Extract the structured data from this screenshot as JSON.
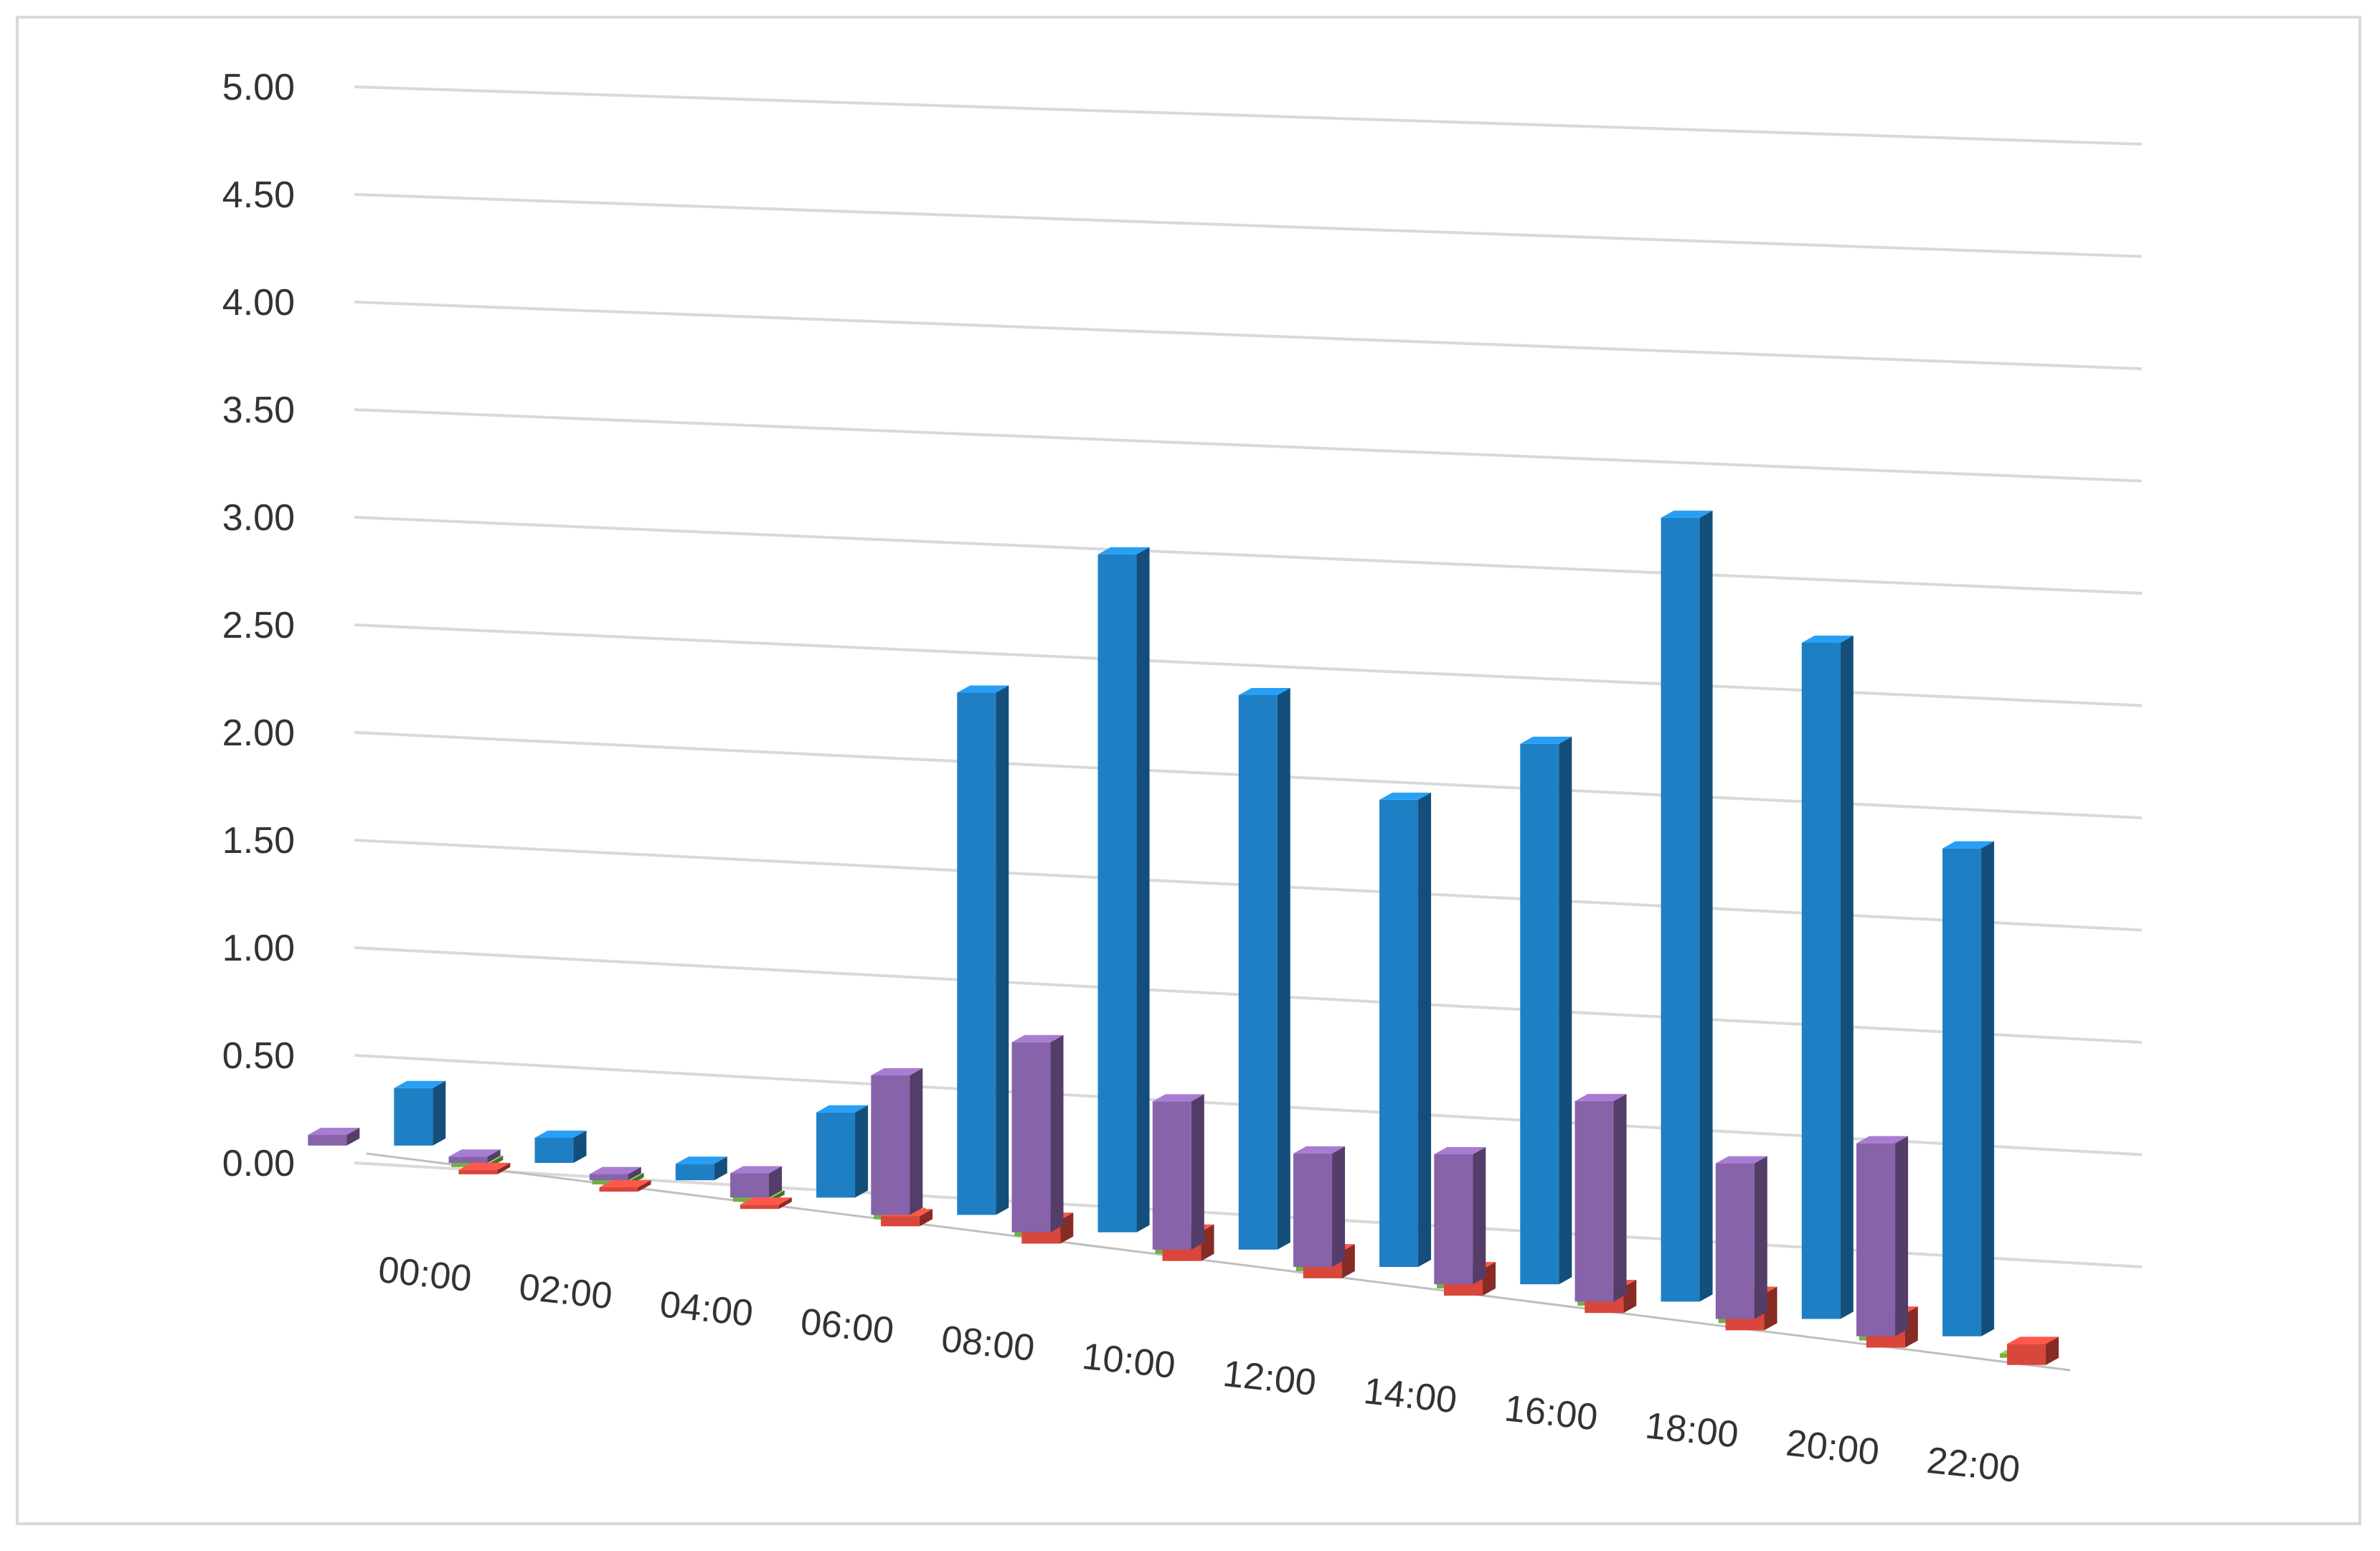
{
  "chart_data": {
    "type": "bar",
    "style": "3d-clustered-column",
    "categories": [
      "00:00",
      "02:00",
      "04:00",
      "06:00",
      "08:00",
      "10:00",
      "12:00",
      "14:00",
      "16:00",
      "18:00",
      "20:00",
      "22:00"
    ],
    "series": [
      {
        "color": "#1f7fc4",
        "values": [
          0.27,
          0.12,
          0.08,
          0.42,
          2.62,
          3.46,
          2.88,
          2.47,
          2.91,
          4.3,
          3.78,
          2.78
        ]
      },
      {
        "color": "#d9463b",
        "values": [
          0.0,
          0.02,
          0.02,
          0.05,
          0.12,
          0.15,
          0.14,
          0.14,
          0.14,
          0.2,
          0.19,
          0.12
        ]
      },
      {
        "color": "#72b043",
        "values": [
          0.0,
          0.0,
          0.0,
          0.0,
          0.0,
          0.0,
          0.0,
          0.0,
          0.0,
          0.0,
          0.0,
          0.0
        ]
      },
      {
        "color": "#8763a9",
        "values": [
          0.05,
          0.03,
          0.03,
          0.12,
          0.7,
          0.97,
          0.77,
          0.6,
          0.7,
          1.1,
          0.87,
          1.1
        ]
      }
    ],
    "y_ticks": [
      "0.00",
      "0.50",
      "1.00",
      "1.50",
      "2.00",
      "2.50",
      "3.00",
      "3.50",
      "4.00",
      "4.50",
      "5.00"
    ],
    "ylim": [
      0,
      5
    ],
    "grid": true,
    "legend": "none",
    "title": "",
    "xlabel": "",
    "ylabel": ""
  }
}
